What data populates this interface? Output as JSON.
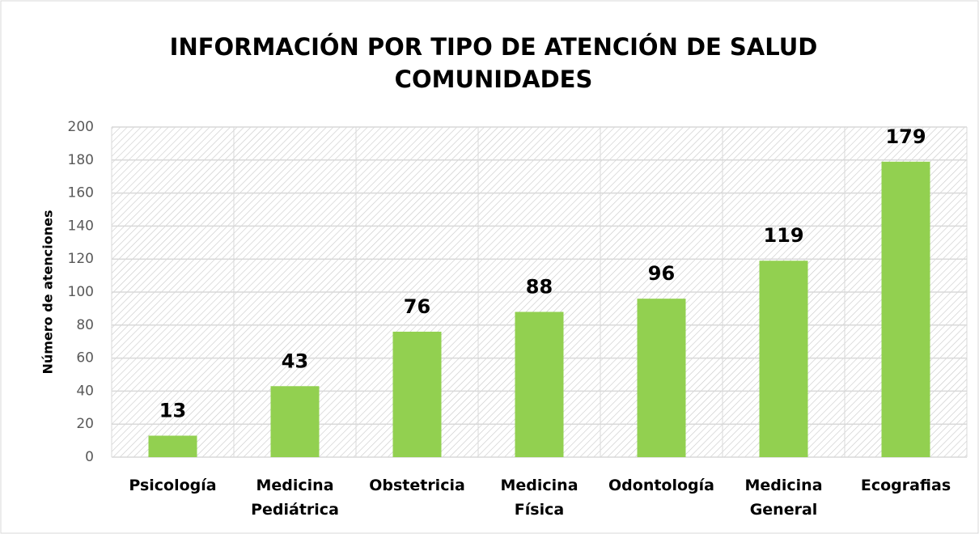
{
  "chart_data": {
    "type": "bar",
    "title": "INFORMACIÓN POR TIPO DE ATENCIÓN DE SALUD COMUNIDADES",
    "y_label": "Número de atenciones",
    "categories": [
      "Psicología",
      "Medicina Pediátrica",
      "Obstetricia",
      "Medicina Física",
      "Odontología",
      "Medicina General",
      "Ecografias"
    ],
    "values": [
      13,
      43,
      76,
      88,
      96,
      119,
      179
    ],
    "color": "#92d050",
    "ylim": [
      0,
      200
    ],
    "yticks": [
      0,
      20,
      40,
      60,
      80,
      100,
      120,
      140,
      160,
      180,
      200
    ],
    "grid": true
  }
}
